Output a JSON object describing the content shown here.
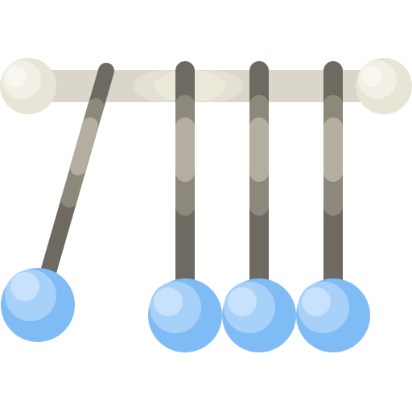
{
  "icon": {
    "name": "newtons-cradle-icon",
    "colors": {
      "bar": "#DAD6CA",
      "bar_highlight": "#EEEADC",
      "bar_cap": "#E8E4D6",
      "bar_cap_highlight": "#F6F3EA",
      "string_dark": "#6F6A61",
      "string_mid": "#8D887C",
      "string_light": "#B4AEA0",
      "ball": "#7FBBF5",
      "ball_light": "#A8D1FA",
      "ball_highlight": "#CFE5FC"
    }
  }
}
